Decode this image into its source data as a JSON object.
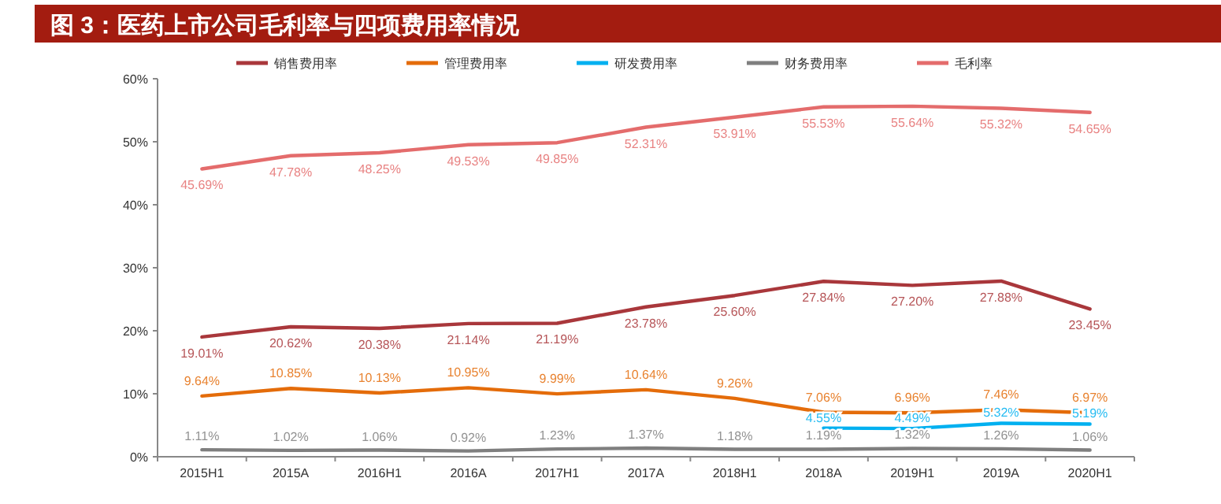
{
  "chart_data": {
    "type": "line",
    "title": "图 3：医药上市公司毛利率与四项费用率情况",
    "categories": [
      "2015H1",
      "2015A",
      "2016H1",
      "2016A",
      "2017H1",
      "2017A",
      "2018H1",
      "2018A",
      "2019H1",
      "2019A",
      "2020H1"
    ],
    "series": [
      {
        "name": "销售费用率",
        "color": "#a9373b",
        "values": [
          19.01,
          20.62,
          20.38,
          21.14,
          21.19,
          23.78,
          25.6,
          27.84,
          27.2,
          27.88,
          23.45
        ],
        "value_labels": [
          "19.01%",
          "20.62%",
          "20.38%",
          "21.14%",
          "21.19%",
          "23.78%",
          "25.60%",
          "27.84%",
          "27.20%",
          "27.88%",
          "23.45%"
        ]
      },
      {
        "name": "管理费用率",
        "color": "#e46c0a",
        "values": [
          9.64,
          10.85,
          10.13,
          10.95,
          9.99,
          10.64,
          9.26,
          7.06,
          6.96,
          7.46,
          6.97
        ],
        "value_labels": [
          "9.64%",
          "10.85%",
          "10.13%",
          "10.95%",
          "9.99%",
          "10.64%",
          "9.26%",
          "7.06%",
          "6.96%",
          "7.46%",
          "6.97%"
        ]
      },
      {
        "name": "研发费用率",
        "color": "#00b0f0",
        "values": [
          null,
          null,
          null,
          null,
          null,
          null,
          null,
          4.55,
          4.49,
          5.32,
          5.19
        ],
        "value_labels": [
          null,
          null,
          null,
          null,
          null,
          null,
          null,
          "4.55%",
          "4.49%",
          "5.32%",
          "5.19%"
        ]
      },
      {
        "name": "财务费用率",
        "color": "#7f7f7f",
        "values": [
          1.11,
          1.02,
          1.06,
          0.92,
          1.23,
          1.37,
          1.18,
          1.19,
          1.32,
          1.26,
          1.06
        ],
        "value_labels": [
          "1.11%",
          "1.02%",
          "1.06%",
          "0.92%",
          "1.23%",
          "1.37%",
          "1.18%",
          "1.19%",
          "1.32%",
          "1.26%",
          "1.06%"
        ]
      },
      {
        "name": "毛利率",
        "color": "#e46c6c",
        "values": [
          45.69,
          47.78,
          48.25,
          49.53,
          49.85,
          52.31,
          53.91,
          55.53,
          55.64,
          55.32,
          54.65
        ],
        "value_labels": [
          "45.69%",
          "47.78%",
          "48.25%",
          "49.53%",
          "49.85%",
          "52.31%",
          "53.91%",
          "55.53%",
          "55.64%",
          "55.32%",
          "54.65%"
        ]
      }
    ],
    "ylim": [
      0,
      60
    ],
    "yticks": [
      {
        "value": 0,
        "label": "0%"
      },
      {
        "value": 10,
        "label": "10%"
      },
      {
        "value": 20,
        "label": "20%"
      },
      {
        "value": 30,
        "label": "30%"
      },
      {
        "value": 40,
        "label": "40%"
      },
      {
        "value": 50,
        "label": "50%"
      },
      {
        "value": 60,
        "label": "60%"
      }
    ],
    "legend": "top"
  }
}
